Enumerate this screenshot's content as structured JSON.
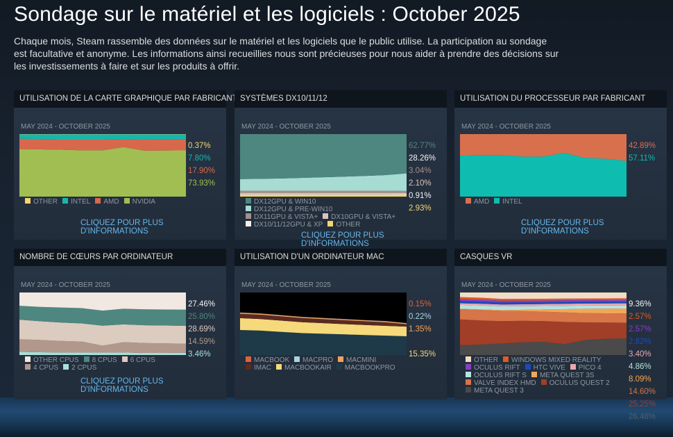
{
  "page": {
    "title": "Sondage sur le matériel et les logiciels : October 2025",
    "description": "Chaque mois, Steam rassemble des données sur le matériel et les logiciels que le public utilise. La participation au sondage est facultative et anonyme. Les informations ainsi recueillies nous sont précieuses pour nous aider à prendre des décisions sur les investissements à faire et sur les produits à offrir.",
    "link_line1": "CLIQUEZ POUR PLUS",
    "link_line2": "D'INFORMATIONS"
  },
  "chart_data": [
    {
      "type": "area",
      "title": "UTILISATION DE LA CARTE GRAPHIQUE PAR FABRICANT",
      "subtitle": "MAY 2024 - OCTOBER 2025",
      "ylim": [
        0,
        100
      ],
      "has_link": true,
      "series": [
        {
          "name": "OTHER",
          "color": "#f5d66b",
          "label": "0.37%",
          "values": [
            0.4,
            0.4,
            0.4,
            0.4,
            0.4,
            0.4,
            0.4,
            0.4,
            0.37
          ]
        },
        {
          "name": "INTEL",
          "color": "#14b8ad",
          "label": "7.80%",
          "values": [
            7,
            7.5,
            8,
            7.9,
            8,
            8.5,
            7.8,
            7.6,
            7.8
          ]
        },
        {
          "name": "AMD",
          "color": "#d8684c",
          "label": "17.90%",
          "values": [
            16.6,
            16.6,
            16.6,
            17.7,
            17.6,
            12,
            18.3,
            18.2,
            17.9
          ]
        },
        {
          "name": "NVIDIA",
          "color": "#a1be53",
          "label": "73.93%",
          "values": [
            76,
            75.5,
            75,
            74,
            74,
            79.1,
            73.5,
            73.8,
            73.93
          ]
        }
      ]
    },
    {
      "type": "area",
      "title": "SYSTÈMES DX10/11/12",
      "subtitle": "MAY 2024 - OCTOBER 2025",
      "ylim": [
        0,
        100
      ],
      "has_link": true,
      "series": [
        {
          "name": "DX12GPU & WIN10",
          "color": "#4e877f",
          "label": "62.77%",
          "values": [
            72,
            71.5,
            71,
            70,
            69,
            68,
            67,
            65.5,
            62.77
          ]
        },
        {
          "name": "DX12GPU & PRE-WIN10",
          "color": "#a6dcd3",
          "label": "28.26%",
          "values": [
            18.5,
            19,
            19.5,
            20.5,
            21.5,
            22.5,
            23.5,
            25,
            28.26
          ]
        },
        {
          "name": "DX11GPU & VISTA+",
          "color": "#a48f8c",
          "label": "3.04%",
          "values": [
            3.5,
            3.5,
            3.5,
            3.5,
            3.5,
            3.5,
            3.5,
            3.5,
            3.04
          ]
        },
        {
          "name": "DX10GPU & VISTA+",
          "color": "#dcc4b8",
          "label": "2.10%",
          "values": [
            2.2,
            2.2,
            2.2,
            2.2,
            2.2,
            2.2,
            2.2,
            2.2,
            2.1
          ]
        },
        {
          "name": "DX10/11/12GPU & XP",
          "color": "#f2eeea",
          "label": "0.91%",
          "values": [
            0.9,
            0.9,
            0.9,
            0.9,
            0.9,
            0.9,
            0.9,
            0.9,
            0.91
          ]
        },
        {
          "name": "OTHER",
          "color": "#f5d66b",
          "label": "2.93%",
          "values": [
            2.9,
            2.9,
            2.9,
            2.9,
            2.9,
            2.9,
            2.9,
            2.9,
            2.93
          ]
        }
      ]
    },
    {
      "type": "area",
      "title": "UTILISATION DU PROCESSEUR PAR FABRICANT",
      "subtitle": "MAY 2024 - OCTOBER 2025",
      "ylim": [
        0,
        100
      ],
      "has_link": true,
      "series": [
        {
          "name": "AMD",
          "color": "#d8704e",
          "label": "42.89%",
          "values": [
            34,
            33.5,
            33.5,
            36,
            36,
            30,
            38,
            39.5,
            42.89
          ]
        },
        {
          "name": "INTEL",
          "color": "#0fbcb0",
          "label": "57.11%",
          "values": [
            66,
            66.5,
            66.5,
            64,
            64,
            70,
            62,
            60.5,
            57.11
          ]
        }
      ]
    },
    {
      "type": "area",
      "title": "NOMBRE DE CŒURS PAR ORDINATEUR",
      "subtitle": "MAY 2024 - OCTOBER 2025",
      "ylim": [
        0,
        100
      ],
      "has_link": true,
      "series": [
        {
          "name": "OTHER CPUS",
          "color": "#f1e8e2",
          "label": "27.46%",
          "values": [
            21,
            23,
            24,
            25,
            29,
            26,
            27,
            27.2,
            27.46
          ]
        },
        {
          "name": "8 CPUS",
          "color": "#4e877f",
          "label": "25.80%",
          "values": [
            22,
            23,
            24,
            24.5,
            24,
            25,
            25.3,
            25.6,
            25.8
          ]
        },
        {
          "name": "6 CPUS",
          "color": "#dccbbf",
          "label": "28.69%",
          "values": [
            31,
            30,
            29.5,
            29,
            32,
            28.5,
            28.5,
            28.6,
            28.69
          ]
        },
        {
          "name": "4 CPUS",
          "color": "#b2978d",
          "label": "14.59%",
          "values": [
            20,
            19.5,
            18.5,
            17.5,
            11,
            16.5,
            15.8,
            15.2,
            14.59
          ]
        },
        {
          "name": "2 CPUS",
          "color": "#a6e0d8",
          "label": "3.46%",
          "values": [
            5,
            4.5,
            4,
            4,
            4,
            4,
            3.4,
            3.4,
            3.46
          ]
        }
      ]
    },
    {
      "type": "area",
      "title": "UTILISATION D'UN ORDINATEUR MAC",
      "subtitle": "MAY 2024 - OCTOBER 2025",
      "ylim": [
        0,
        100
      ],
      "has_link": false,
      "empty_color": "#000000",
      "series": [
        {
          "name": "MACBOOK",
          "color": "#d9653f",
          "label": "0.15%",
          "values": [
            0.2,
            0.2,
            0.2,
            0.2,
            0.2,
            0.2,
            0.2,
            0.2,
            0.15
          ]
        },
        {
          "name": "MACPRO",
          "color": "#a8d4e0",
          "label": "0.22%",
          "values": [
            0.3,
            0.3,
            0.3,
            0.3,
            0.3,
            0.3,
            0.3,
            0.3,
            0.22
          ]
        },
        {
          "name": "MACMINI",
          "color": "#f0a35e",
          "label": "1.35%",
          "values": [
            1.5,
            1.5,
            1.5,
            1.5,
            1.4,
            1.4,
            1.4,
            1.4,
            1.35
          ]
        },
        {
          "name": "IMAC",
          "color": "#5a2a22",
          "label": "",
          "values": [
            7,
            7,
            6.8,
            6.6,
            6.4,
            6.2,
            6,
            5.8,
            4
          ]
        },
        {
          "name": "MACBOOKAIR",
          "color": "#f6d97a",
          "label": "15.35%",
          "values": [
            19,
            18.5,
            18,
            17.5,
            17,
            16.5,
            16,
            15.6,
            15.35
          ]
        },
        {
          "name": "MACBOOKPRO",
          "color": "#1e3a48",
          "label": "",
          "values": [
            40,
            39,
            37,
            35,
            34,
            33,
            32,
            31,
            30
          ]
        }
      ]
    },
    {
      "type": "area",
      "title": "CASQUES VR",
      "subtitle": "MAY 2024 - OCTOBER 2025",
      "ylim": [
        0,
        100
      ],
      "has_link": false,
      "series": [
        {
          "name": "OTHER",
          "color": "#f1ddc6",
          "label": "9.36%",
          "values": [
            7,
            8,
            10,
            10,
            10,
            9.5,
            9.5,
            9.4,
            9.36
          ]
        },
        {
          "name": "WINDOWS MIXED REALITY",
          "color": "#e05a22",
          "label": "2.57%",
          "values": [
            3,
            3,
            2.8,
            2.8,
            2.7,
            2.6,
            2.6,
            2.6,
            2.57
          ]
        },
        {
          "name": "OCULUS RIFT",
          "color": "#8440c4",
          "label": "2.57%",
          "values": [
            2.8,
            2.8,
            2.7,
            2.7,
            2.6,
            2.6,
            2.6,
            2.6,
            2.57
          ]
        },
        {
          "name": "HTC VIVE",
          "color": "#1a4cb8",
          "label": "2.82%",
          "values": [
            3.5,
            3.4,
            3.3,
            3.2,
            3.1,
            3,
            2.9,
            2.9,
            2.82
          ]
        },
        {
          "name": "PICO 4",
          "color": "#e8a9b2",
          "label": "3.40%",
          "values": [
            2.5,
            2.8,
            3,
            3,
            3.2,
            3.3,
            3.3,
            3.4,
            3.4
          ]
        },
        {
          "name": "OCULUS RIFT S",
          "color": "#b6e3de",
          "label": "4.86%",
          "values": [
            6,
            6,
            5.8,
            5.6,
            5.4,
            5.2,
            5,
            5,
            4.86
          ]
        },
        {
          "name": "META QUEST 3S",
          "color": "#f3a658",
          "label": "8.09%",
          "values": [
            0.5,
            0.8,
            1.2,
            2,
            3.5,
            5,
            7,
            7.5,
            8.09
          ]
        },
        {
          "name": "VALVE INDEX HMD",
          "color": "#d77448",
          "label": "14.60%",
          "values": [
            15.5,
            16,
            16,
            15.5,
            15,
            15,
            14.8,
            14.7,
            14.6
          ]
        },
        {
          "name": "OCULUS QUEST 2",
          "color": "#a13e27",
          "label": "25.25%",
          "values": [
            39,
            37,
            35,
            34,
            33,
            35,
            28,
            26,
            25.25
          ]
        },
        {
          "name": "META QUEST 3",
          "color": "#4a4a4a",
          "label": "26.48%",
          "values": [
            15,
            16,
            18,
            20,
            21,
            17,
            24,
            26,
            26.48
          ]
        }
      ]
    }
  ]
}
